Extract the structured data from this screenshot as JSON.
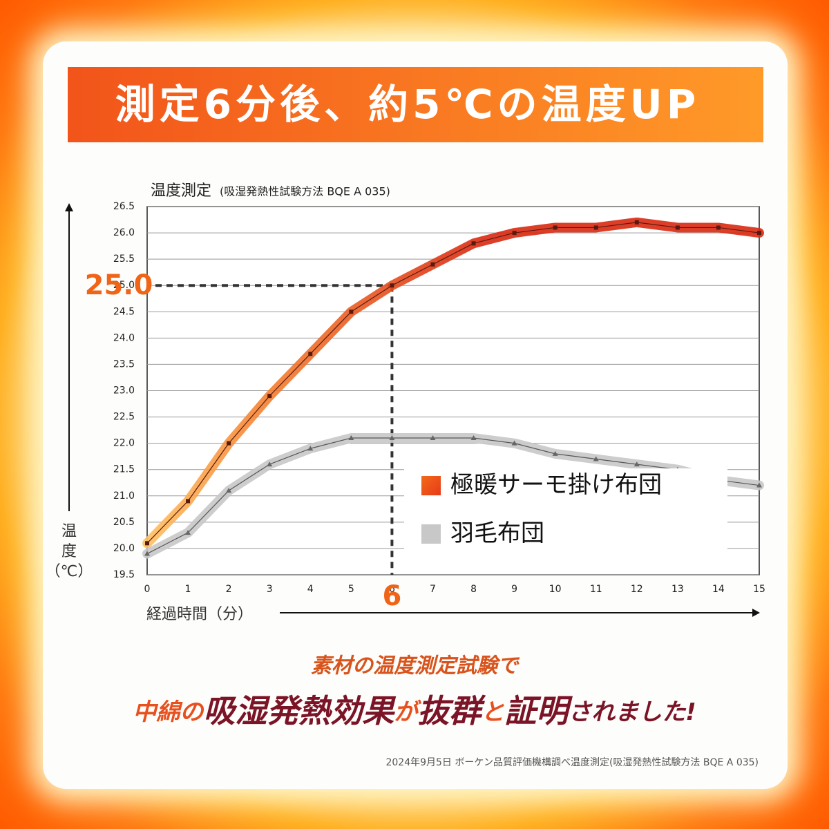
{
  "banner": "測定6分後、約5℃の温度UP",
  "chart_data": {
    "type": "line",
    "title": "温度測定",
    "subtitle": "(吸湿発熱性試験方法 BQE A 035)",
    "y_label": "温度（℃）",
    "x_label": "経過時間（分）",
    "x": [
      0,
      1,
      2,
      3,
      4,
      5,
      6,
      7,
      8,
      9,
      10,
      11,
      12,
      13,
      14,
      15
    ],
    "series": [
      {
        "name": "極暖サーモ掛け布団",
        "color": "#e8401c",
        "values": [
          20.1,
          20.9,
          22.0,
          22.9,
          23.7,
          24.5,
          25.0,
          25.4,
          25.8,
          26.0,
          26.1,
          26.1,
          26.2,
          26.1,
          26.1,
          26.0
        ]
      },
      {
        "name": "羽毛布団",
        "color": "#c8c8c8",
        "values": [
          19.9,
          20.3,
          21.1,
          21.6,
          21.9,
          22.1,
          22.1,
          22.1,
          22.1,
          22.0,
          21.8,
          21.7,
          21.6,
          21.5,
          21.3,
          21.2
        ]
      }
    ],
    "xlim": [
      0,
      15
    ],
    "xticks": [
      0,
      1,
      2,
      3,
      4,
      5,
      6,
      7,
      8,
      9,
      10,
      11,
      12,
      13,
      14,
      15
    ],
    "ylim": [
      19.5,
      26.5
    ],
    "yticks": [
      {
        "value": 19.5,
        "label": "19.5"
      },
      {
        "value": 20,
        "label": "20.0"
      },
      {
        "value": 20.5,
        "label": "20.5"
      },
      {
        "value": 21,
        "label": "21.0"
      },
      {
        "value": 21.5,
        "label": "21.5"
      },
      {
        "value": 22,
        "label": "22.0"
      },
      {
        "value": 22.5,
        "label": "22.5"
      },
      {
        "value": 23,
        "label": "23.0"
      },
      {
        "value": 23.5,
        "label": "23.5"
      },
      {
        "value": 24,
        "label": "24.0"
      },
      {
        "value": 24.5,
        "label": "24.5"
      },
      {
        "value": 25,
        "label": "25.0"
      },
      {
        "value": 25.5,
        "label": "25.5"
      },
      {
        "value": 26,
        "label": "26.0"
      },
      {
        "value": 26.5,
        "label": "26.5"
      }
    ],
    "grid": true,
    "highlight": {
      "x": 6,
      "y": 25,
      "y_label": "25.0"
    }
  },
  "caption": {
    "line1": "素材の温度測定試験で",
    "line2": [
      "中綿の",
      "吸湿発熱効果",
      "が",
      "抜群",
      "と",
      "証明",
      "されました!"
    ]
  },
  "footnote": "2024年9月5日 ボーケン品質評価機構調べ温度測定(吸湿発熱性試験方法 BQE A 035)"
}
